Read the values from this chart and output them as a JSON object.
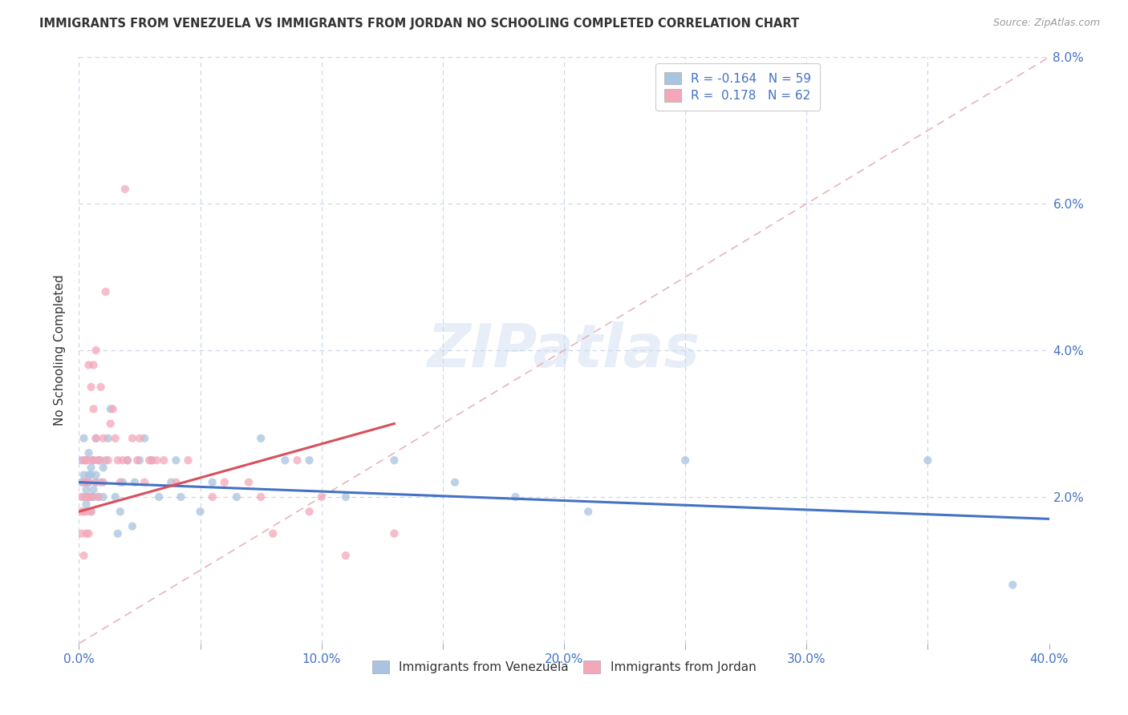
{
  "title": "IMMIGRANTS FROM VENEZUELA VS IMMIGRANTS FROM JORDAN NO SCHOOLING COMPLETED CORRELATION CHART",
  "source": "Source: ZipAtlas.com",
  "ylabel": "No Schooling Completed",
  "xlim": [
    0.0,
    0.4
  ],
  "ylim": [
    0.0,
    0.08
  ],
  "xticks": [
    0.0,
    0.05,
    0.1,
    0.15,
    0.2,
    0.25,
    0.3,
    0.35,
    0.4
  ],
  "xticklabels": [
    "0.0%",
    "",
    "10.0%",
    "",
    "20.0%",
    "",
    "30.0%",
    "",
    "40.0%"
  ],
  "yticks": [
    0.0,
    0.02,
    0.04,
    0.06,
    0.08
  ],
  "yticklabels_right": [
    "",
    "2.0%",
    "4.0%",
    "6.0%",
    "8.0%"
  ],
  "legend1_label": "R = -0.164   N = 59",
  "legend2_label": "R =  0.178   N = 62",
  "legend_bottom1": "Immigrants from Venezuela",
  "legend_bottom2": "Immigrants from Jordan",
  "color_venezuela": "#a8c4e0",
  "color_jordan": "#f4a7b9",
  "trend_venezuela_color": "#4472c4",
  "trend_jordan_color": "#d94f5c",
  "watermark": "ZIPatlas",
  "ref_line_color": "#e8b4bb",
  "venezuela_trend_x0": 0.0,
  "venezuela_trend_y0": 0.022,
  "venezuela_trend_x1": 0.4,
  "venezuela_trend_y1": 0.017,
  "jordan_trend_x0": 0.0,
  "jordan_trend_y0": 0.018,
  "jordan_trend_x1": 0.13,
  "jordan_trend_y1": 0.03,
  "venezuela_x": [
    0.001,
    0.001,
    0.002,
    0.002,
    0.002,
    0.003,
    0.003,
    0.003,
    0.003,
    0.004,
    0.004,
    0.004,
    0.004,
    0.005,
    0.005,
    0.005,
    0.005,
    0.006,
    0.006,
    0.006,
    0.007,
    0.007,
    0.007,
    0.008,
    0.008,
    0.009,
    0.01,
    0.01,
    0.011,
    0.012,
    0.013,
    0.015,
    0.016,
    0.017,
    0.018,
    0.02,
    0.022,
    0.023,
    0.025,
    0.027,
    0.03,
    0.033,
    0.038,
    0.04,
    0.042,
    0.05,
    0.055,
    0.065,
    0.075,
    0.085,
    0.095,
    0.11,
    0.13,
    0.155,
    0.18,
    0.21,
    0.25,
    0.35,
    0.385
  ],
  "venezuela_y": [
    0.022,
    0.025,
    0.02,
    0.023,
    0.028,
    0.019,
    0.022,
    0.025,
    0.021,
    0.023,
    0.02,
    0.026,
    0.022,
    0.02,
    0.024,
    0.018,
    0.023,
    0.021,
    0.025,
    0.02,
    0.022,
    0.028,
    0.023,
    0.02,
    0.025,
    0.022,
    0.024,
    0.02,
    0.025,
    0.028,
    0.032,
    0.02,
    0.015,
    0.018,
    0.022,
    0.025,
    0.016,
    0.022,
    0.025,
    0.028,
    0.025,
    0.02,
    0.022,
    0.025,
    0.02,
    0.018,
    0.022,
    0.02,
    0.028,
    0.025,
    0.025,
    0.02,
    0.025,
    0.022,
    0.02,
    0.018,
    0.025,
    0.025,
    0.008
  ],
  "jordan_x": [
    0.001,
    0.001,
    0.001,
    0.002,
    0.002,
    0.002,
    0.002,
    0.003,
    0.003,
    0.003,
    0.003,
    0.003,
    0.004,
    0.004,
    0.004,
    0.004,
    0.005,
    0.005,
    0.005,
    0.005,
    0.006,
    0.006,
    0.006,
    0.007,
    0.007,
    0.007,
    0.008,
    0.008,
    0.009,
    0.009,
    0.01,
    0.01,
    0.011,
    0.012,
    0.013,
    0.014,
    0.015,
    0.016,
    0.017,
    0.018,
    0.019,
    0.02,
    0.022,
    0.024,
    0.025,
    0.027,
    0.029,
    0.03,
    0.032,
    0.035,
    0.04,
    0.045,
    0.055,
    0.06,
    0.07,
    0.075,
    0.08,
    0.09,
    0.095,
    0.1,
    0.11,
    0.13
  ],
  "jordan_y": [
    0.02,
    0.015,
    0.018,
    0.022,
    0.018,
    0.025,
    0.012,
    0.02,
    0.025,
    0.018,
    0.022,
    0.015,
    0.02,
    0.038,
    0.022,
    0.015,
    0.025,
    0.035,
    0.02,
    0.018,
    0.032,
    0.025,
    0.038,
    0.04,
    0.028,
    0.022,
    0.025,
    0.02,
    0.035,
    0.025,
    0.022,
    0.028,
    0.048,
    0.025,
    0.03,
    0.032,
    0.028,
    0.025,
    0.022,
    0.025,
    0.062,
    0.025,
    0.028,
    0.025,
    0.028,
    0.022,
    0.025,
    0.025,
    0.025,
    0.025,
    0.022,
    0.025,
    0.02,
    0.022,
    0.022,
    0.02,
    0.015,
    0.025,
    0.018,
    0.02,
    0.012,
    0.015
  ]
}
